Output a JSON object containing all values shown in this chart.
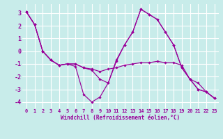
{
  "background_color": "#c8ecea",
  "grid_color": "#ffffff",
  "line_color": "#990099",
  "marker_color": "#990099",
  "xlabel": "Windchill (Refroidissement éolien,°C)",
  "xlim": [
    -0.5,
    23.5
  ],
  "ylim": [
    -4.5,
    3.7
  ],
  "yticks": [
    -4,
    -3,
    -2,
    -1,
    0,
    1,
    2,
    3
  ],
  "xticks": [
    0,
    1,
    2,
    3,
    4,
    5,
    6,
    7,
    8,
    9,
    10,
    11,
    12,
    13,
    14,
    15,
    16,
    17,
    18,
    19,
    20,
    21,
    22,
    23
  ],
  "xtick_labels": [
    "0",
    "1",
    "2",
    "3",
    "4",
    "5",
    "6",
    "7",
    "8",
    "9",
    "10",
    "11",
    "12",
    "13",
    "14",
    "15",
    "16",
    "17",
    "18",
    "19",
    "20",
    "21",
    "22",
    "23"
  ],
  "series": [
    [
      3.1,
      2.1,
      0.0,
      -0.7,
      -1.1,
      -1.0,
      -1.2,
      -3.4,
      -4.0,
      -3.6,
      -2.5,
      -0.7,
      0.5,
      1.5,
      3.3,
      2.9,
      2.5,
      1.5,
      0.5,
      -1.3,
      -2.2,
      -3.0,
      -3.2,
      -3.7
    ],
    [
      3.1,
      2.1,
      0.0,
      -0.7,
      -1.1,
      -1.0,
      -1.0,
      -1.3,
      -1.4,
      -1.6,
      -1.4,
      -1.3,
      -1.1,
      -1.0,
      -0.9,
      -0.9,
      -0.8,
      -0.9,
      -0.9,
      -1.1,
      -2.2,
      -2.5,
      -3.2,
      -3.7
    ],
    [
      3.1,
      2.1,
      0.0,
      -0.7,
      -1.1,
      -1.0,
      -1.0,
      -1.3,
      -1.5,
      -2.2,
      -2.5,
      -0.8,
      0.5,
      1.5,
      3.3,
      2.9,
      2.5,
      1.5,
      0.5,
      -1.3,
      -2.2,
      -3.0,
      -3.2,
      -3.7
    ]
  ]
}
